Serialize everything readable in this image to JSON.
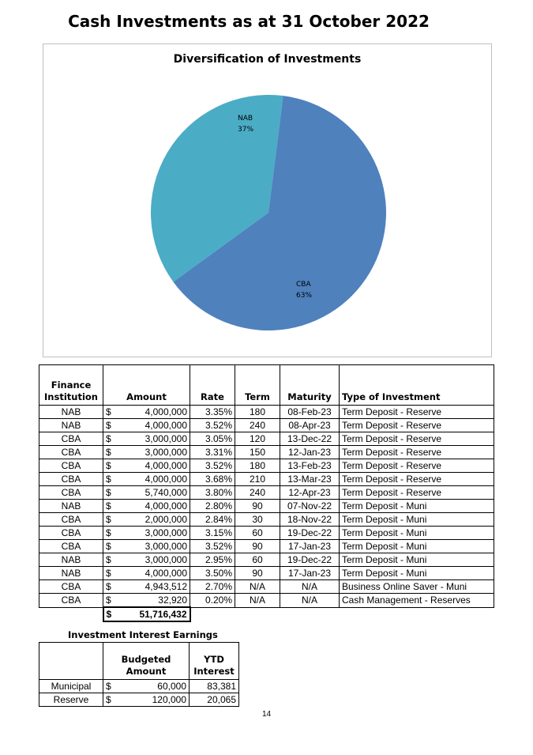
{
  "page": {
    "title": "Cash Investments as at 31 October 2022",
    "page_number": "14"
  },
  "chart_data": {
    "type": "pie",
    "title": "Diversification of Investments",
    "slices": [
      {
        "label": "NAB",
        "percent_label": "37%",
        "value": 37,
        "color": "#4bacc6"
      },
      {
        "label": "CBA",
        "percent_label": "63%",
        "value": 63,
        "color": "#4f81bd"
      }
    ]
  },
  "investments": {
    "headers": {
      "institution_line1": "Finance",
      "institution_line2": "Institution",
      "amount": "Amount",
      "rate": "Rate",
      "term": "Term",
      "maturity": "Maturity",
      "type": "Type of Investment"
    },
    "currency": "$",
    "rows": [
      {
        "institution": "NAB",
        "amount": "4,000,000",
        "rate": "3.35%",
        "term": "180",
        "maturity": "08-Feb-23",
        "type": "Term Deposit - Reserve"
      },
      {
        "institution": "NAB",
        "amount": "4,000,000",
        "rate": "3.52%",
        "term": "240",
        "maturity": "08-Apr-23",
        "type": "Term Deposit - Reserve"
      },
      {
        "institution": "CBA",
        "amount": "3,000,000",
        "rate": "3.05%",
        "term": "120",
        "maturity": "13-Dec-22",
        "type": "Term Deposit - Reserve"
      },
      {
        "institution": "CBA",
        "amount": "3,000,000",
        "rate": "3.31%",
        "term": "150",
        "maturity": "12-Jan-23",
        "type": "Term Deposit - Reserve"
      },
      {
        "institution": "CBA",
        "amount": "4,000,000",
        "rate": "3.52%",
        "term": "180",
        "maturity": "13-Feb-23",
        "type": "Term Deposit - Reserve"
      },
      {
        "institution": "CBA",
        "amount": "4,000,000",
        "rate": "3.68%",
        "term": "210",
        "maturity": "13-Mar-23",
        "type": "Term Deposit - Reserve"
      },
      {
        "institution": "CBA",
        "amount": "5,740,000",
        "rate": "3.80%",
        "term": "240",
        "maturity": "12-Apr-23",
        "type": "Term Deposit - Reserve"
      },
      {
        "institution": "NAB",
        "amount": "4,000,000",
        "rate": "2.80%",
        "term": "90",
        "maturity": "07-Nov-22",
        "type": "Term Deposit - Muni"
      },
      {
        "institution": "CBA",
        "amount": "2,000,000",
        "rate": "2.84%",
        "term": "30",
        "maturity": "18-Nov-22",
        "type": "Term Deposit - Muni"
      },
      {
        "institution": "CBA",
        "amount": "3,000,000",
        "rate": "3.15%",
        "term": "60",
        "maturity": "19-Dec-22",
        "type": "Term Deposit - Muni"
      },
      {
        "institution": "CBA",
        "amount": "3,000,000",
        "rate": "3.52%",
        "term": "90",
        "maturity": "17-Jan-23",
        "type": "Term Deposit - Muni"
      },
      {
        "institution": "NAB",
        "amount": "3,000,000",
        "rate": "2.95%",
        "term": "60",
        "maturity": "19-Dec-22",
        "type": "Term Deposit - Muni"
      },
      {
        "institution": "NAB",
        "amount": "4,000,000",
        "rate": "3.50%",
        "term": "90",
        "maturity": "17-Jan-23",
        "type": "Term Deposit - Muni"
      },
      {
        "institution": "CBA",
        "amount": "4,943,512",
        "rate": "2.70%",
        "term": "N/A",
        "maturity": "N/A",
        "type": "Business Online Saver - Muni"
      },
      {
        "institution": "CBA",
        "amount": "32,920",
        "rate": "0.20%",
        "term": "N/A",
        "maturity": "N/A",
        "type": "Cash Management - Reserves"
      }
    ],
    "total": "51,716,432"
  },
  "earnings": {
    "title": "Investment Interest Earnings",
    "headers": {
      "budget_line1": "Budgeted",
      "budget_line2": "Amount",
      "ytd_line1": "YTD",
      "ytd_line2": "Interest"
    },
    "currency": "$",
    "rows": [
      {
        "label": "Municipal",
        "budgeted": "60,000",
        "ytd": "83,381"
      },
      {
        "label": "Reserve",
        "budgeted": "120,000",
        "ytd": "20,065"
      }
    ]
  }
}
